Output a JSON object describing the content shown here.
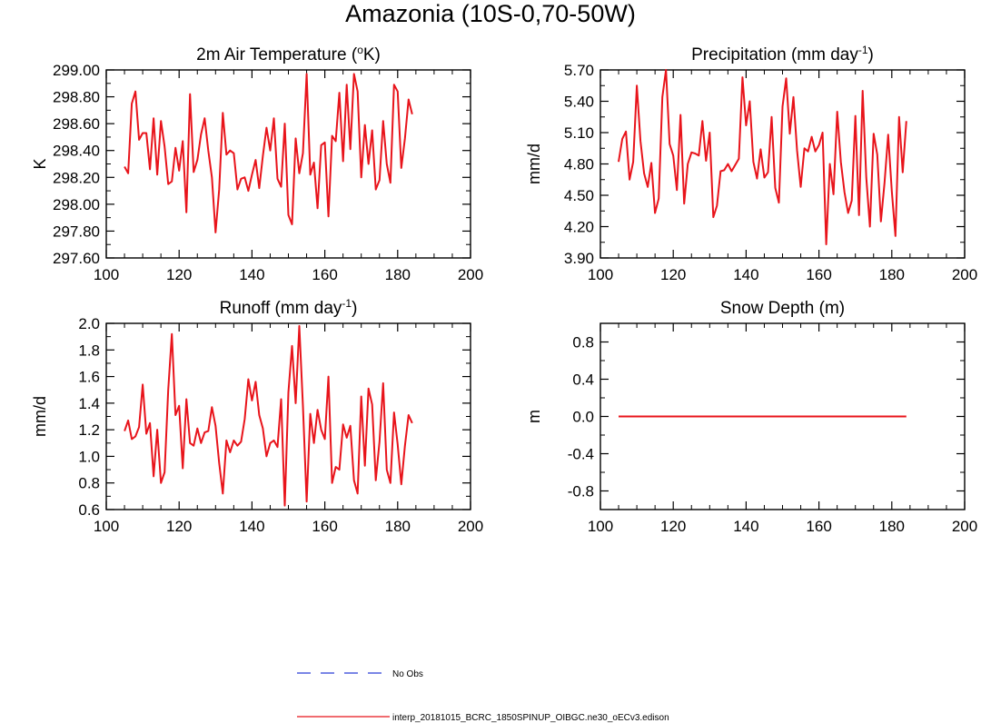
{
  "figure": {
    "title": "Amazonia (10S-0,70-50W)"
  },
  "legend": {
    "items": [
      {
        "label": "No Obs",
        "color": "#2b3fd8",
        "style": "dashed"
      },
      {
        "label": "interp_20181015_BCRC_1850SPINUP_OIBGC.ne30_oECv3.edison",
        "color": "#e8141b",
        "style": "solid"
      }
    ]
  },
  "chart_data": [
    {
      "type": "line",
      "title": "2m Air Temperature (°K)",
      "title_parts": {
        "pre": "2m Air Temperature (",
        "sup": "o",
        "post": "K)"
      },
      "xlabel": "",
      "ylabel": "K",
      "xlim": [
        100,
        200
      ],
      "ylim": [
        297.6,
        299.0
      ],
      "xticks": [
        "100",
        "120",
        "140",
        "160",
        "180",
        "200"
      ],
      "yticks": [
        "297.60",
        "297.80",
        "298.00",
        "298.20",
        "298.40",
        "298.60",
        "298.80",
        "299.00"
      ],
      "series": [
        {
          "color": "#e8141b",
          "x": [
            105,
            106,
            107,
            108,
            109,
            110,
            111,
            112,
            113,
            114,
            115,
            116,
            117,
            118,
            119,
            120,
            121,
            122,
            123,
            124,
            125,
            126,
            127,
            128,
            129,
            130,
            131,
            132,
            133,
            134,
            135,
            136,
            137,
            138,
            139,
            140,
            141,
            142,
            143,
            144,
            145,
            146,
            147,
            148,
            149,
            150,
            151,
            152,
            153,
            154,
            155,
            156,
            157,
            158,
            159,
            160,
            161,
            162,
            163,
            164,
            165,
            166,
            167,
            168,
            169,
            170,
            171,
            172,
            173,
            174,
            175,
            176,
            177,
            178,
            179,
            180,
            181,
            182,
            183,
            184
          ],
          "values": [
            298.28,
            298.23,
            298.75,
            298.84,
            298.48,
            298.53,
            298.53,
            298.26,
            298.64,
            298.22,
            298.62,
            298.43,
            298.15,
            298.17,
            298.42,
            298.25,
            298.47,
            297.94,
            298.82,
            298.24,
            298.33,
            298.52,
            298.64,
            298.4,
            298.2,
            297.79,
            298.11,
            298.68,
            298.37,
            298.4,
            298.38,
            298.11,
            298.19,
            298.2,
            298.1,
            298.22,
            298.33,
            298.12,
            298.36,
            298.57,
            298.4,
            298.64,
            298.19,
            298.13,
            298.6,
            297.92,
            297.85,
            298.49,
            298.23,
            298.38,
            298.97,
            298.22,
            298.31,
            297.97,
            298.44,
            298.46,
            297.91,
            298.51,
            298.47,
            298.83,
            298.32,
            298.89,
            298.41,
            298.97,
            298.84,
            298.2,
            298.59,
            298.3,
            298.55,
            298.11,
            298.18,
            298.62,
            298.3,
            298.16,
            298.89,
            298.84,
            298.27,
            298.49,
            298.78,
            298.67
          ]
        }
      ]
    },
    {
      "type": "line",
      "title": "Precipitation (mm day-1)",
      "title_parts": {
        "pre": "Precipitation (mm day",
        "sup": "-1",
        "post": ")"
      },
      "xlabel": "",
      "ylabel": "mm/d",
      "xlim": [
        100,
        200
      ],
      "ylim": [
        3.9,
        5.7
      ],
      "xticks": [
        "100",
        "120",
        "140",
        "160",
        "180",
        "200"
      ],
      "yticks": [
        "3.90",
        "4.20",
        "4.50",
        "4.80",
        "5.10",
        "5.40",
        "5.70"
      ],
      "series": [
        {
          "color": "#e8141b",
          "x": [
            105,
            106,
            107,
            108,
            109,
            110,
            111,
            112,
            113,
            114,
            115,
            116,
            117,
            118,
            119,
            120,
            121,
            122,
            123,
            124,
            125,
            126,
            127,
            128,
            129,
            130,
            131,
            132,
            133,
            134,
            135,
            136,
            137,
            138,
            139,
            140,
            141,
            142,
            143,
            144,
            145,
            146,
            147,
            148,
            149,
            150,
            151,
            152,
            153,
            154,
            155,
            156,
            157,
            158,
            159,
            160,
            161,
            162,
            163,
            164,
            165,
            166,
            167,
            168,
            169,
            170,
            171,
            172,
            173,
            174,
            175,
            176,
            177,
            178,
            179,
            180,
            181,
            182,
            183,
            184
          ],
          "values": [
            4.82,
            5.04,
            5.11,
            4.65,
            4.82,
            5.55,
            5.02,
            4.71,
            4.58,
            4.81,
            4.33,
            4.47,
            5.44,
            5.7,
            4.99,
            4.88,
            4.55,
            5.27,
            4.42,
            4.8,
            4.91,
            4.9,
            4.88,
            5.21,
            4.83,
            5.1,
            4.29,
            4.4,
            4.73,
            4.74,
            4.8,
            4.73,
            4.79,
            4.85,
            5.63,
            5.17,
            5.4,
            4.82,
            4.66,
            4.94,
            4.67,
            4.72,
            5.25,
            4.57,
            4.43,
            5.35,
            5.62,
            5.09,
            5.44,
            4.93,
            4.58,
            4.95,
            4.92,
            5.06,
            4.92,
            4.98,
            5.1,
            4.03,
            4.8,
            4.51,
            5.3,
            4.82,
            4.53,
            4.33,
            4.45,
            5.26,
            4.31,
            5.5,
            4.67,
            4.2,
            5.09,
            4.89,
            4.25,
            4.62,
            5.08,
            4.54,
            4.11,
            5.25,
            4.72,
            5.21
          ]
        }
      ]
    },
    {
      "type": "line",
      "title": "Runoff (mm day-1)",
      "title_parts": {
        "pre": "Runoff (mm day",
        "sup": "-1",
        "post": ")"
      },
      "xlabel": "",
      "ylabel": "mm/d",
      "xlim": [
        100,
        200
      ],
      "ylim": [
        0.6,
        2.0
      ],
      "xticks": [
        "100",
        "120",
        "140",
        "160",
        "180",
        "200"
      ],
      "yticks": [
        "0.6",
        "0.8",
        "1.0",
        "1.2",
        "1.4",
        "1.6",
        "1.8",
        "2.0"
      ],
      "series": [
        {
          "color": "#e8141b",
          "x": [
            105,
            106,
            107,
            108,
            109,
            110,
            111,
            112,
            113,
            114,
            115,
            116,
            117,
            118,
            119,
            120,
            121,
            122,
            123,
            124,
            125,
            126,
            127,
            128,
            129,
            130,
            131,
            132,
            133,
            134,
            135,
            136,
            137,
            138,
            139,
            140,
            141,
            142,
            143,
            144,
            145,
            146,
            147,
            148,
            149,
            150,
            151,
            152,
            153,
            154,
            155,
            156,
            157,
            158,
            159,
            160,
            161,
            162,
            163,
            164,
            165,
            166,
            167,
            168,
            169,
            170,
            171,
            172,
            173,
            174,
            175,
            176,
            177,
            178,
            179,
            180,
            181,
            182,
            183,
            184
          ],
          "values": [
            1.19,
            1.27,
            1.13,
            1.15,
            1.22,
            1.54,
            1.17,
            1.25,
            0.85,
            1.2,
            0.8,
            0.88,
            1.5,
            1.92,
            1.31,
            1.38,
            0.91,
            1.43,
            1.1,
            1.08,
            1.21,
            1.1,
            1.18,
            1.19,
            1.37,
            1.23,
            0.95,
            0.72,
            1.12,
            1.03,
            1.12,
            1.08,
            1.11,
            1.28,
            1.58,
            1.42,
            1.56,
            1.31,
            1.21,
            1.0,
            1.1,
            1.12,
            1.07,
            1.43,
            0.63,
            1.48,
            1.83,
            1.4,
            1.98,
            1.38,
            0.66,
            1.32,
            1.1,
            1.35,
            1.2,
            1.13,
            1.6,
            0.8,
            0.92,
            0.9,
            1.24,
            1.14,
            1.23,
            0.82,
            0.72,
            1.45,
            0.93,
            1.51,
            1.39,
            0.82,
            1.11,
            1.55,
            0.9,
            0.8,
            1.33,
            1.09,
            0.79,
            1.08,
            1.31,
            1.25
          ]
        }
      ]
    },
    {
      "type": "line",
      "title": "Snow Depth (m)",
      "title_parts": {
        "pre": "Snow Depth (m)",
        "sup": "",
        "post": ""
      },
      "xlabel": "",
      "ylabel": "m",
      "xlim": [
        100,
        200
      ],
      "ylim": [
        -1.0,
        1.0
      ],
      "xticks": [
        "100",
        "120",
        "140",
        "160",
        "180",
        "200"
      ],
      "yticks": [
        "-0.8",
        "-0.4",
        "0.0",
        "0.4",
        "0.8"
      ],
      "series": [
        {
          "color": "#e8141b",
          "x": [
            105,
            184
          ],
          "values": [
            0.0,
            0.0
          ]
        }
      ]
    }
  ]
}
